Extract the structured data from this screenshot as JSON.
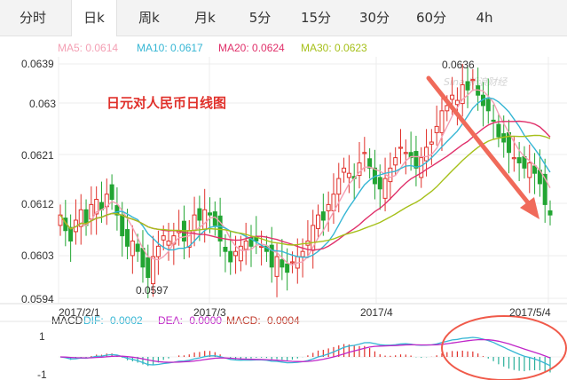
{
  "tabs": [
    {
      "label": "分时",
      "active": false
    },
    {
      "label": "日k",
      "active": true
    },
    {
      "label": "周k",
      "active": false
    },
    {
      "label": "月k",
      "active": false
    },
    {
      "label": "5分",
      "active": false
    },
    {
      "label": "15分",
      "active": false
    },
    {
      "label": "30分",
      "active": false
    },
    {
      "label": "60分",
      "active": false
    },
    {
      "label": "4h",
      "active": false
    }
  ],
  "ma_legend": [
    {
      "text": "MA5: 0.0614",
      "color": "#f4a0b4"
    },
    {
      "text": "MA10: 0.0617",
      "color": "#35b6d4"
    },
    {
      "text": "MA20: 0.0624",
      "color": "#e0306a"
    },
    {
      "text": "MA30: 0.0623",
      "color": "#a6c01a"
    }
  ],
  "macd_legend": [
    {
      "text": "MACD",
      "color": "#333333"
    },
    {
      "text": "DIF: -0.0002",
      "color": "#35b6d4"
    },
    {
      "text": "DEA: -0.0000",
      "color": "#c026c8"
    },
    {
      "text": "MACD: -0.0004",
      "color": "#c0392b"
    }
  ],
  "chart_data": {
    "type": "candlestick",
    "title": "日元对人民币日线图",
    "yticks": [
      "0.0639",
      "0.063",
      "0.0621",
      "0.0612",
      "0.0603",
      "0.0594"
    ],
    "ylim": [
      0.0594,
      0.0639
    ],
    "xticks": [
      "2017/2/1",
      "2017/3",
      "2017/4",
      "2017/5/4"
    ],
    "annotations": {
      "high": "0.0636",
      "low": "0.0597"
    },
    "macd_yticks": [
      "1",
      "-1"
    ],
    "watermark": "Sina 新浪财经",
    "colors": {
      "up": "#e0302a",
      "down": "#22a532",
      "ma5": "#f4a0b4",
      "ma10": "#35b6d4",
      "ma20": "#e0306a",
      "ma30": "#a6c01a",
      "dif": "#35b6d4",
      "dea": "#c026c8",
      "arrow": "#f06a5a"
    }
  }
}
